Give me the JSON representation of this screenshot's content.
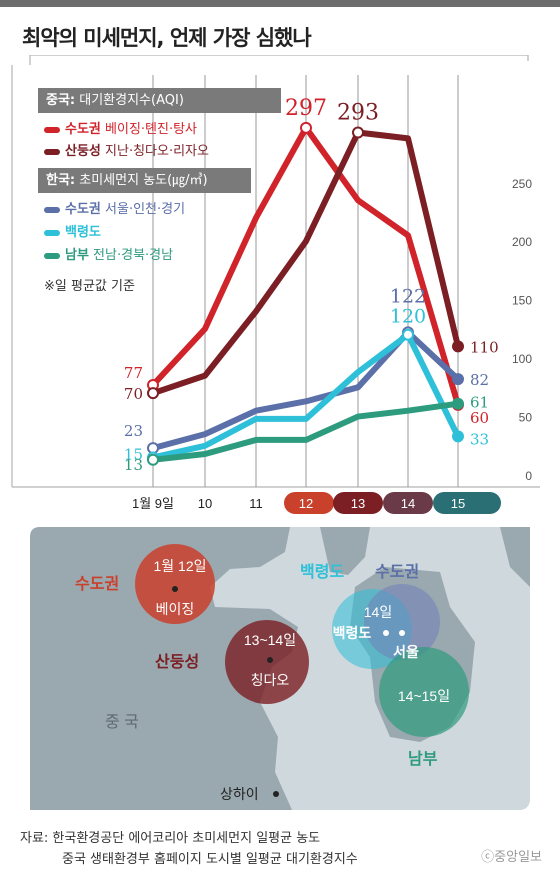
{
  "title": "최악의 미세먼지, 언제 가장 심했나",
  "legend": {
    "china_head_bold": "중국:",
    "china_head": " 대기환경지수(AQI)",
    "korea_head_bold": "한국:",
    "korea_head": " 초미세먼지 농도(㎍/㎥)",
    "note": "※일 평균값 기준",
    "items": [
      {
        "name": "수도권",
        "desc": " 베이징·톈진·탕사",
        "color": "#d0232a"
      },
      {
        "name": "산둥성",
        "desc": " 지난·칭다오·리자오",
        "color": "#7b1f24"
      },
      {
        "name": "수도권",
        "desc": " 서울·인천·경기",
        "color": "#5b6fa8"
      },
      {
        "name": "백령도",
        "desc": "",
        "color": "#2ec0d8"
      },
      {
        "name": "남부",
        "desc": " 전남·경북·경남",
        "color": "#2d9b7e"
      }
    ]
  },
  "chart_data": {
    "type": "line",
    "x": [
      "1월 9일",
      "10",
      "11",
      "12",
      "13",
      "14",
      "15"
    ],
    "y_ticks": [
      "250",
      "200",
      "150",
      "100",
      "50",
      "0"
    ],
    "ylim": [
      0,
      290
    ],
    "series": [
      {
        "name": "수도권 베이징·톈진·탕사",
        "color": "#d0232a",
        "values": [
          77,
          125,
          220,
          297,
          235,
          205,
          60
        ]
      },
      {
        "name": "산둥성 지난·칭다오·리자오",
        "color": "#7b1f24",
        "values": [
          70,
          85,
          140,
          200,
          293,
          288,
          110
        ]
      },
      {
        "name": "수도권 서울·인천·경기",
        "color": "#5b6fa8",
        "values": [
          23,
          35,
          55,
          63,
          75,
          122,
          82
        ]
      },
      {
        "name": "백령도",
        "color": "#2ec0d8",
        "values": [
          15,
          25,
          48,
          48,
          88,
          120,
          33
        ]
      },
      {
        "name": "남부 전남·경북·경남",
        "color": "#2d9b7e",
        "values": [
          13,
          18,
          30,
          30,
          50,
          55,
          61
        ]
      }
    ],
    "labels": [
      {
        "text": "297",
        "color": "#d0232a",
        "series": 0,
        "index": 3
      },
      {
        "text": "293",
        "color": "#7b1f24",
        "series": 1,
        "index": 4
      },
      {
        "text": "122",
        "color": "#5b6fa8",
        "series": 2,
        "index": 5
      },
      {
        "text": "120",
        "color": "#2ec0d8",
        "series": 3,
        "index": 5
      },
      {
        "text": "77",
        "color": "#d0232a",
        "series": 0,
        "index": 0
      },
      {
        "text": "70",
        "color": "#7b1f24",
        "series": 1,
        "index": 0
      },
      {
        "text": "23",
        "color": "#5b6fa8",
        "series": 2,
        "index": 0
      },
      {
        "text": "15",
        "color": "#2ec0d8",
        "series": 3,
        "index": 0
      },
      {
        "text": "13",
        "color": "#2d9b7e",
        "series": 4,
        "index": 0
      },
      {
        "text": "110",
        "color": "#7b1f24",
        "series": 1,
        "index": 6
      },
      {
        "text": "82",
        "color": "#5b6fa8",
        "series": 2,
        "index": 6
      },
      {
        "text": "61",
        "color": "#2d9b7e",
        "series": 4,
        "index": 6
      },
      {
        "text": "60",
        "color": "#d0232a",
        "series": 0,
        "index": 6
      },
      {
        "text": "33",
        "color": "#2ec0d8",
        "series": 3,
        "index": 6
      }
    ],
    "highlight_days": [
      {
        "label": "12",
        "color": "#c9402b"
      },
      {
        "label": "13",
        "color": "#7b1f24"
      },
      {
        "label": "14",
        "color": "#6a3a48"
      },
      {
        "label": "15",
        "color": "#2a6f74"
      }
    ]
  },
  "map": {
    "regions": {
      "china_capital": "수도권",
      "shandong": "산둥성",
      "baengnyeong": "백령도",
      "korea_capital": "수도권",
      "south": "남부",
      "china": "중 국"
    },
    "circles": {
      "beijing_date": "1월 12일",
      "beijing_city": "베이징",
      "qingdao_date": "13~14일",
      "qingdao_city": "칭다오",
      "baengnyeong_date": "14일",
      "baengnyeong_city": "백령도",
      "seoul_city": "서울",
      "south_date": "14~15일"
    },
    "shanghai": "상하이"
  },
  "source": {
    "line1": "자료: 한국환경공단 에어코리아 초미세먼지 일평균 농도",
    "line2": "중국 생태환경부 홈페이지 도시별 일평균 대기환경지수"
  },
  "logo": "ⓒ중앙일보"
}
